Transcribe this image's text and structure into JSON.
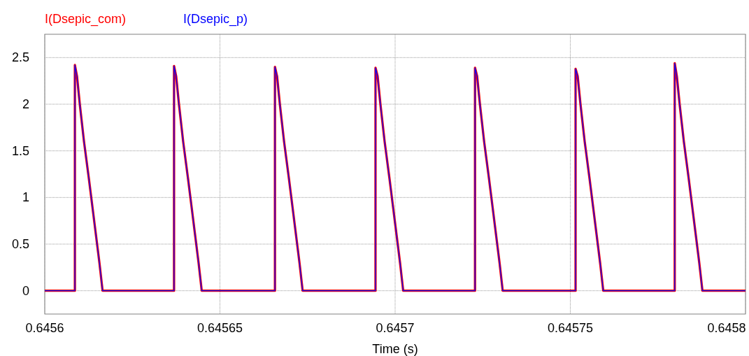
{
  "chart_data": {
    "type": "line",
    "xlabel": "Time (s)",
    "xlim": [
      0.6456,
      0.6458
    ],
    "xticks": [
      0.6456,
      0.64565,
      0.6457,
      0.64575,
      0.6458
    ],
    "ylim": [
      -0.25,
      2.75
    ],
    "yticks": [
      0,
      0.5,
      1,
      1.5,
      2,
      2.5
    ],
    "grid": true,
    "legend": "top left",
    "line_style": "solid",
    "marker": "none",
    "x": [
      0.6456,
      0.6456086,
      0.6456086,
      0.6456092,
      0.64561,
      0.6456112,
      0.6456126,
      0.6456136,
      0.6456146,
      0.6456156,
      0.6456165,
      0.6456369,
      0.6456369,
      0.6456375,
      0.6456383,
      0.6456395,
      0.6456409,
      0.6456419,
      0.6456429,
      0.6456439,
      0.6456448,
      0.6456657,
      0.6456657,
      0.6456663,
      0.6456671,
      0.6456683,
      0.6456697,
      0.6456707,
      0.6456717,
      0.6456727,
      0.6456736,
      0.6456944,
      0.6456944,
      0.645695,
      0.6456958,
      0.645697,
      0.6456984,
      0.6456994,
      0.6457004,
      0.6457014,
      0.6457023,
      0.6457228,
      0.6457228,
      0.6457234,
      0.6457242,
      0.6457254,
      0.6457268,
      0.6457278,
      0.6457288,
      0.6457298,
      0.6457307,
      0.6457515,
      0.6457515,
      0.6457521,
      0.6457529,
      0.6457541,
      0.6457555,
      0.6457565,
      0.6457575,
      0.6457585,
      0.6457594,
      0.6457798,
      0.6457798,
      0.6457804,
      0.6457812,
      0.6457824,
      0.6457838,
      0.6457848,
      0.6457858,
      0.6457868,
      0.6457877,
      0.6458
    ],
    "series": [
      {
        "name": "I(Dsepic_com)",
        "color": "#ff0000",
        "values": [
          0,
          0,
          2.42,
          2.3,
          2.0,
          1.6,
          1.2,
          0.9,
          0.6,
          0.3,
          0,
          0,
          2.41,
          2.3,
          2.0,
          1.6,
          1.2,
          0.9,
          0.6,
          0.3,
          0,
          0,
          2.4,
          2.3,
          2.0,
          1.6,
          1.2,
          0.9,
          0.6,
          0.3,
          0,
          0,
          2.39,
          2.3,
          2.0,
          1.6,
          1.2,
          0.9,
          0.6,
          0.3,
          0,
          0,
          2.39,
          2.3,
          2.0,
          1.6,
          1.2,
          0.9,
          0.6,
          0.3,
          0,
          0,
          2.38,
          2.3,
          2.0,
          1.6,
          1.2,
          0.9,
          0.6,
          0.3,
          0,
          0,
          2.44,
          2.3,
          2.0,
          1.6,
          1.2,
          0.9,
          0.6,
          0.3,
          0,
          0
        ]
      },
      {
        "name": "I(Dsepic_p)",
        "color": "#0000ff",
        "values": [
          0,
          0,
          2.42,
          2.3,
          2.0,
          1.6,
          1.2,
          0.9,
          0.6,
          0.3,
          0,
          0,
          2.41,
          2.3,
          2.0,
          1.6,
          1.2,
          0.9,
          0.6,
          0.3,
          0,
          0,
          2.4,
          2.3,
          2.0,
          1.6,
          1.2,
          0.9,
          0.6,
          0.3,
          0,
          0,
          2.39,
          2.3,
          2.0,
          1.6,
          1.2,
          0.9,
          0.6,
          0.3,
          0,
          0,
          2.39,
          2.3,
          2.0,
          1.6,
          1.2,
          0.9,
          0.6,
          0.3,
          0,
          0,
          2.38,
          2.3,
          2.0,
          1.6,
          1.2,
          0.9,
          0.6,
          0.3,
          0,
          0,
          2.44,
          2.3,
          2.0,
          1.6,
          1.2,
          0.9,
          0.6,
          0.3,
          0,
          0
        ]
      }
    ]
  }
}
